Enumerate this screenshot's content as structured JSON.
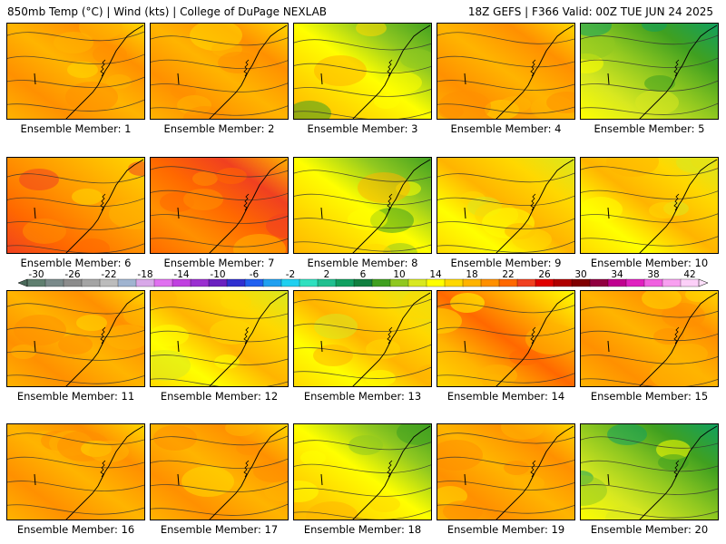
{
  "header": {
    "left": "850mb Temp (°C) | Wind (kts) | College of DuPage NEXLAB",
    "right": "18Z GEFS | F366 Valid: 00Z TUE JUN 24 2025"
  },
  "colors": {
    "background": "#ffffff",
    "border": "#000000",
    "contour": "#333333"
  },
  "colorbar": {
    "tick_labels": [
      "-30",
      "-26",
      "-22",
      "-18",
      "-14",
      "-10",
      "-6",
      "-2",
      "2",
      "6",
      "10",
      "14",
      "18",
      "22",
      "26",
      "30",
      "34",
      "38",
      "42"
    ],
    "colors": [
      "#5f7f6f",
      "#7a8a8a",
      "#8c8c8c",
      "#a4a4a4",
      "#bcbcbc",
      "#a0b4d0",
      "#d8a8e8",
      "#e070f0",
      "#c040e0",
      "#9a30d0",
      "#6a20c0",
      "#3030d0",
      "#2060f0",
      "#20a0f0",
      "#20d0f0",
      "#30e0c0",
      "#20c090",
      "#10a060",
      "#108040",
      "#40a020",
      "#90c820",
      "#d8e820",
      "#ffff00",
      "#ffd800",
      "#ffb400",
      "#ff9000",
      "#ff6800",
      "#f04020",
      "#e00000",
      "#b00000",
      "#800000",
      "#900040",
      "#c00090",
      "#e020c0",
      "#f060e0",
      "#f8a0f0",
      "#fcd0f8"
    ]
  },
  "members": [
    {
      "label": "Ensemble Member: 1",
      "regime": "warm"
    },
    {
      "label": "Ensemble Member: 2",
      "regime": "warm"
    },
    {
      "label": "Ensemble Member: 3",
      "regime": "cool-ne"
    },
    {
      "label": "Ensemble Member: 4",
      "regime": "warm"
    },
    {
      "label": "Ensemble Member: 5",
      "regime": "cool"
    },
    {
      "label": "Ensemble Member: 6",
      "regime": "hot-w"
    },
    {
      "label": "Ensemble Member: 7",
      "regime": "hot"
    },
    {
      "label": "Ensemble Member: 8",
      "regime": "cool-ne"
    },
    {
      "label": "Ensemble Member: 9",
      "regime": "mild"
    },
    {
      "label": "Ensemble Member: 10",
      "regime": "mild"
    },
    {
      "label": "Ensemble Member: 11",
      "regime": "warm"
    },
    {
      "label": "Ensemble Member: 12",
      "regime": "mild"
    },
    {
      "label": "Ensemble Member: 13",
      "regime": "mild"
    },
    {
      "label": "Ensemble Member: 14",
      "regime": "warm-band"
    },
    {
      "label": "Ensemble Member: 15",
      "regime": "warm"
    },
    {
      "label": "Ensemble Member: 16",
      "regime": "warm"
    },
    {
      "label": "Ensemble Member: 17",
      "regime": "warm"
    },
    {
      "label": "Ensemble Member: 18",
      "regime": "cool-ne"
    },
    {
      "label": "Ensemble Member: 19",
      "regime": "warm"
    },
    {
      "label": "Ensemble Member: 20",
      "regime": "cool"
    }
  ]
}
